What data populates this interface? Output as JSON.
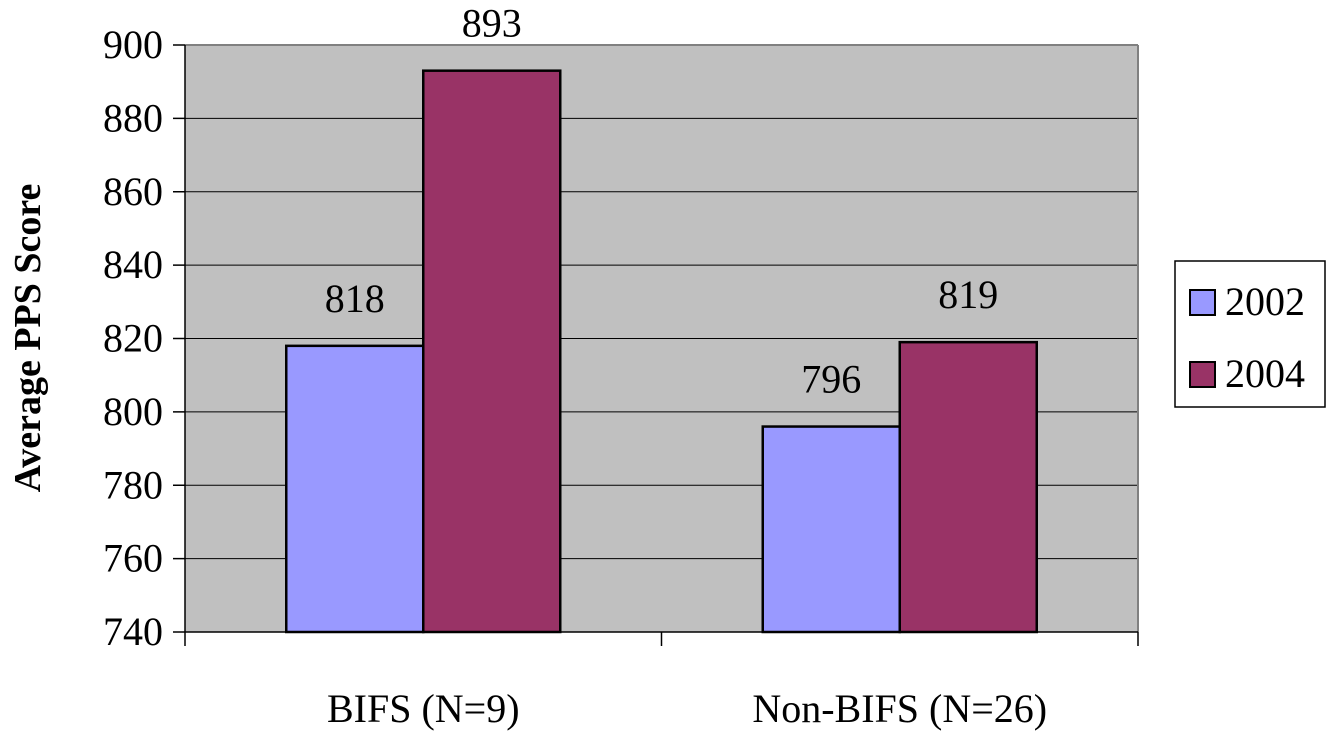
{
  "chart_data": {
    "type": "bar",
    "categories": [
      "BIFS (N=9)",
      "Non-BIFS (N=26)"
    ],
    "series": [
      {
        "name": "2002",
        "values": [
          818,
          796
        ],
        "color": "#9999ff"
      },
      {
        "name": "2004",
        "values": [
          893,
          819
        ],
        "color": "#993366"
      }
    ],
    "ylabel": "Average PPS Score",
    "xlabel": "",
    "ylim": [
      740,
      900
    ],
    "yticks": [
      "740",
      "760",
      "780",
      "800",
      "820",
      "840",
      "860",
      "880",
      "900"
    ],
    "data_labels": [
      [
        "818",
        "796"
      ],
      [
        "893",
        "819"
      ]
    ],
    "grid": true,
    "plot_background": "#c0c0c0",
    "legend_position": "right"
  }
}
